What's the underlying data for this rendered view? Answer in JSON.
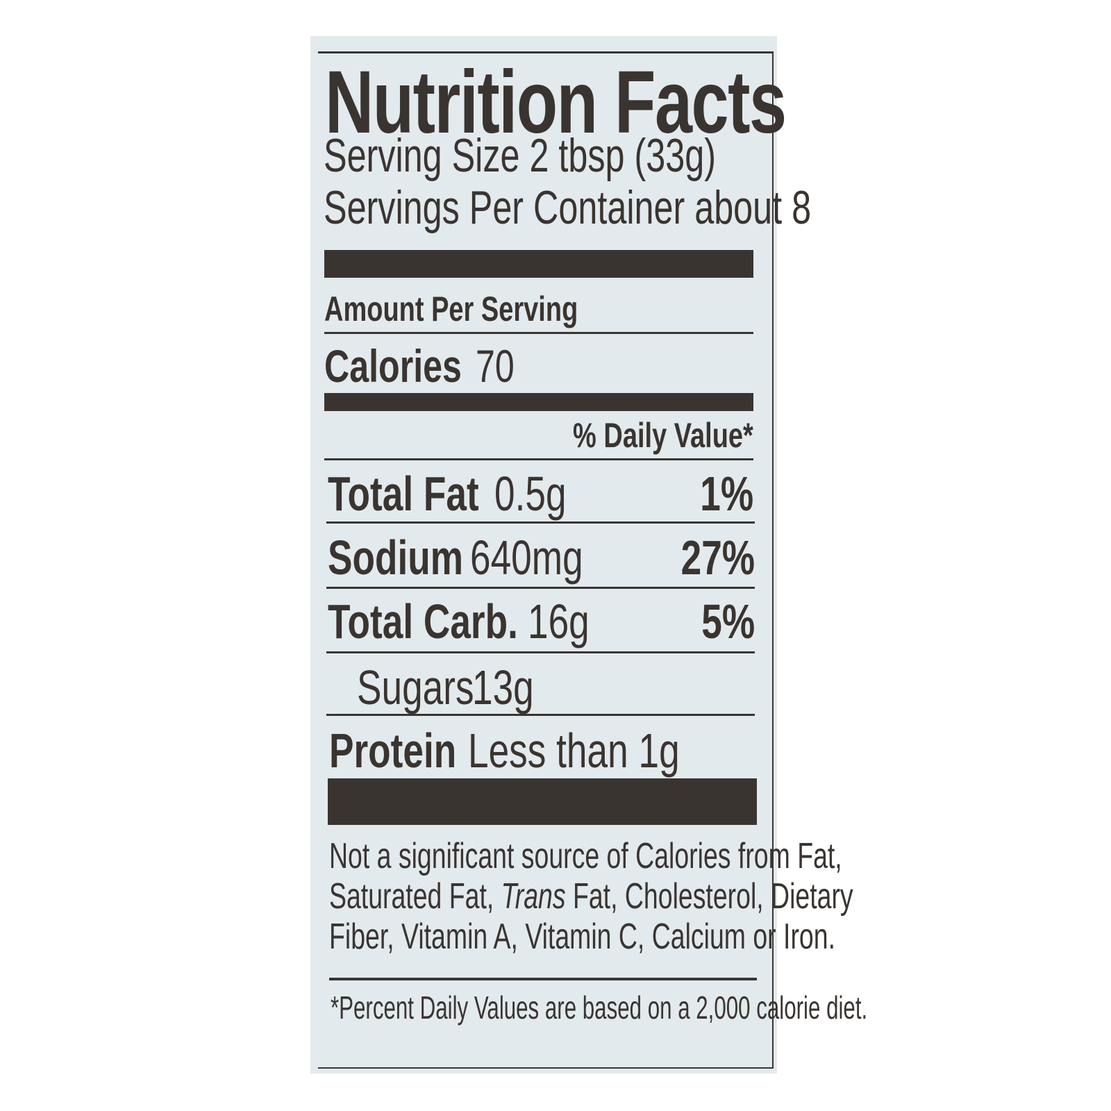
{
  "title": "Nutrition Facts",
  "serving_size": "Serving Size 2 tbsp (33g)",
  "servings_per_container": "Servings Per Container about 8",
  "amount_per_serving": "Amount Per Serving",
  "calories": {
    "label": "Calories",
    "value": "70"
  },
  "daily_value_header": "% Daily Value*",
  "nutrients": [
    {
      "label": "Total Fat",
      "amount": "0.5g",
      "dv": "1%"
    },
    {
      "label": "Sodium",
      "amount": "640mg",
      "dv": "27%"
    },
    {
      "label": "Total Carb.",
      "amount": "16g",
      "dv": "5%"
    },
    {
      "label": "Sugars",
      "amount": "13g"
    },
    {
      "label": "Protein",
      "amount": "Less than 1g"
    }
  ],
  "footnote": {
    "line1": "Not a significant source of Calories from Fat,",
    "line2_a": "Saturated Fat, ",
    "line2_italic": "Trans",
    "line2_b": " Fat, Cholesterol, Dietary",
    "line3": "Fiber, Vitamin A, Vitamin C, Calcium or Iron."
  },
  "dv_note": "*Percent Daily Values are based on a 2,000 calorie diet.",
  "colors": {
    "ink": "#3a3431",
    "background": "#e3eaed"
  }
}
